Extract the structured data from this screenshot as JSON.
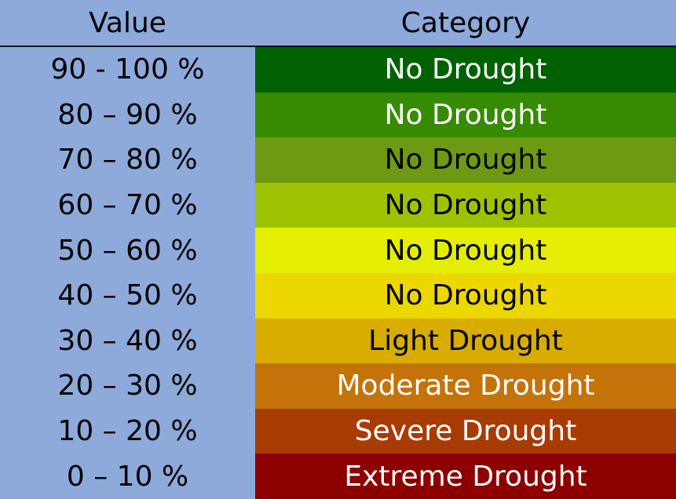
{
  "header": {
    "value_label": "Value",
    "category_label": "Category"
  },
  "rows": [
    {
      "value": "90 - 100 %",
      "category": "No Drought",
      "bg": "#006100",
      "fg": "#ffffff"
    },
    {
      "value": "80 – 90 %",
      "category": "No Drought",
      "bg": "#378b00",
      "fg": "#ffffff"
    },
    {
      "value": "70 – 80 %",
      "category": "No Drought",
      "bg": "#6e9a13",
      "fg": "#000000"
    },
    {
      "value": "60 – 70 %",
      "category": "No Drought",
      "bg": "#9dc300",
      "fg": "#000000"
    },
    {
      "value": "50 – 60 %",
      "category": "No Drought",
      "bg": "#e5ee00",
      "fg": "#000000"
    },
    {
      "value": "40 – 50 %",
      "category": "No Drought",
      "bg": "#ecd700",
      "fg": "#000000"
    },
    {
      "value": "30 – 40 %",
      "category": "Light Drought",
      "bg": "#d8ad00",
      "fg": "#000000"
    },
    {
      "value": "20 – 30 %",
      "category": "Moderate Drought",
      "bg": "#c47309",
      "fg": "#ffffff"
    },
    {
      "value": "10 – 20 %",
      "category": "Severe Drought",
      "bg": "#a83b00",
      "fg": "#ffffff"
    },
    {
      "value": "0 – 10 %",
      "category": "Extreme Drought",
      "bg": "#8c0000",
      "fg": "#ffffff"
    }
  ]
}
